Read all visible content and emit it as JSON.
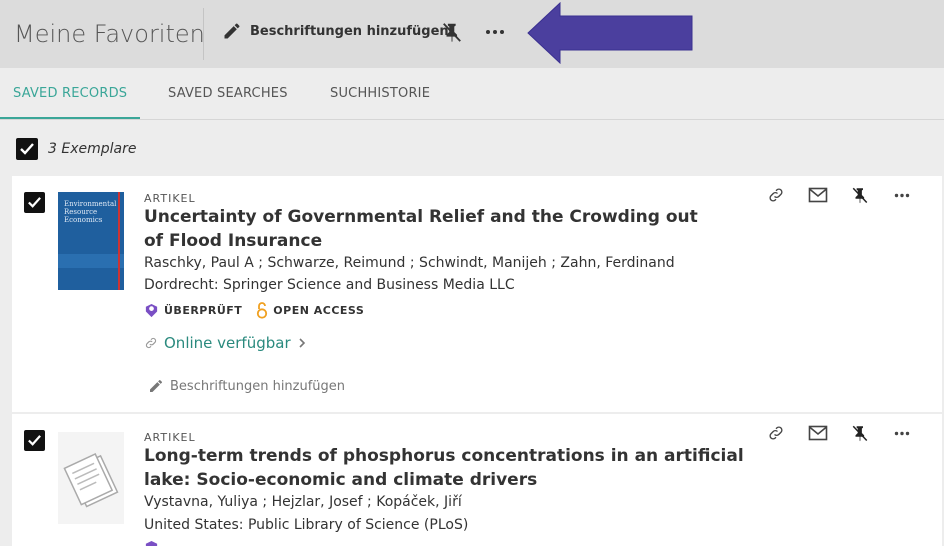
{
  "header": {
    "title": "Meine Favoriten",
    "add_labels": "Beschriftungen hinzufügen"
  },
  "tabs": [
    {
      "label": "SAVED RECORDS",
      "active": true
    },
    {
      "label": "SAVED SEARCHES",
      "active": false
    },
    {
      "label": "SUCHHISTORIE",
      "active": false
    }
  ],
  "selection": {
    "count_label": "3 Exemplare"
  },
  "records": [
    {
      "type": "ARTIKEL",
      "title": "Uncertainty of Governmental Relief and the Crowding out of Flood Insurance",
      "authors": "Raschky, Paul A ; Schwarze, Reimund ; Schwindt, Manijeh ; Zahn, Ferdinand",
      "publisher": "Dordrecht: Springer Science and Business Media LLC",
      "badge_reviewed": "ÜBERPRÜFT",
      "badge_open_access": "OPEN ACCESS",
      "online_link": "Online verfügbar",
      "add_labels": "Beschriftungen hinzufügen",
      "thumbnail_text": "Environmental Resource Economics"
    },
    {
      "type": "ARTIKEL",
      "title": "Long-term trends of phosphorus concentrations in an artificial lake: Socio-economic and climate drivers",
      "authors": "Vystavna, Yuliya ; Hejzlar, Josef ; Kopáček, Jiří",
      "publisher": "United States: Public Library of Science (PLoS)"
    }
  ],
  "colors": {
    "accent": "#3aa698",
    "link": "#2a8a7e",
    "arrow": "#4b3f9e",
    "reviewed": "#7a4fc4",
    "open_access": "#f0a020"
  }
}
